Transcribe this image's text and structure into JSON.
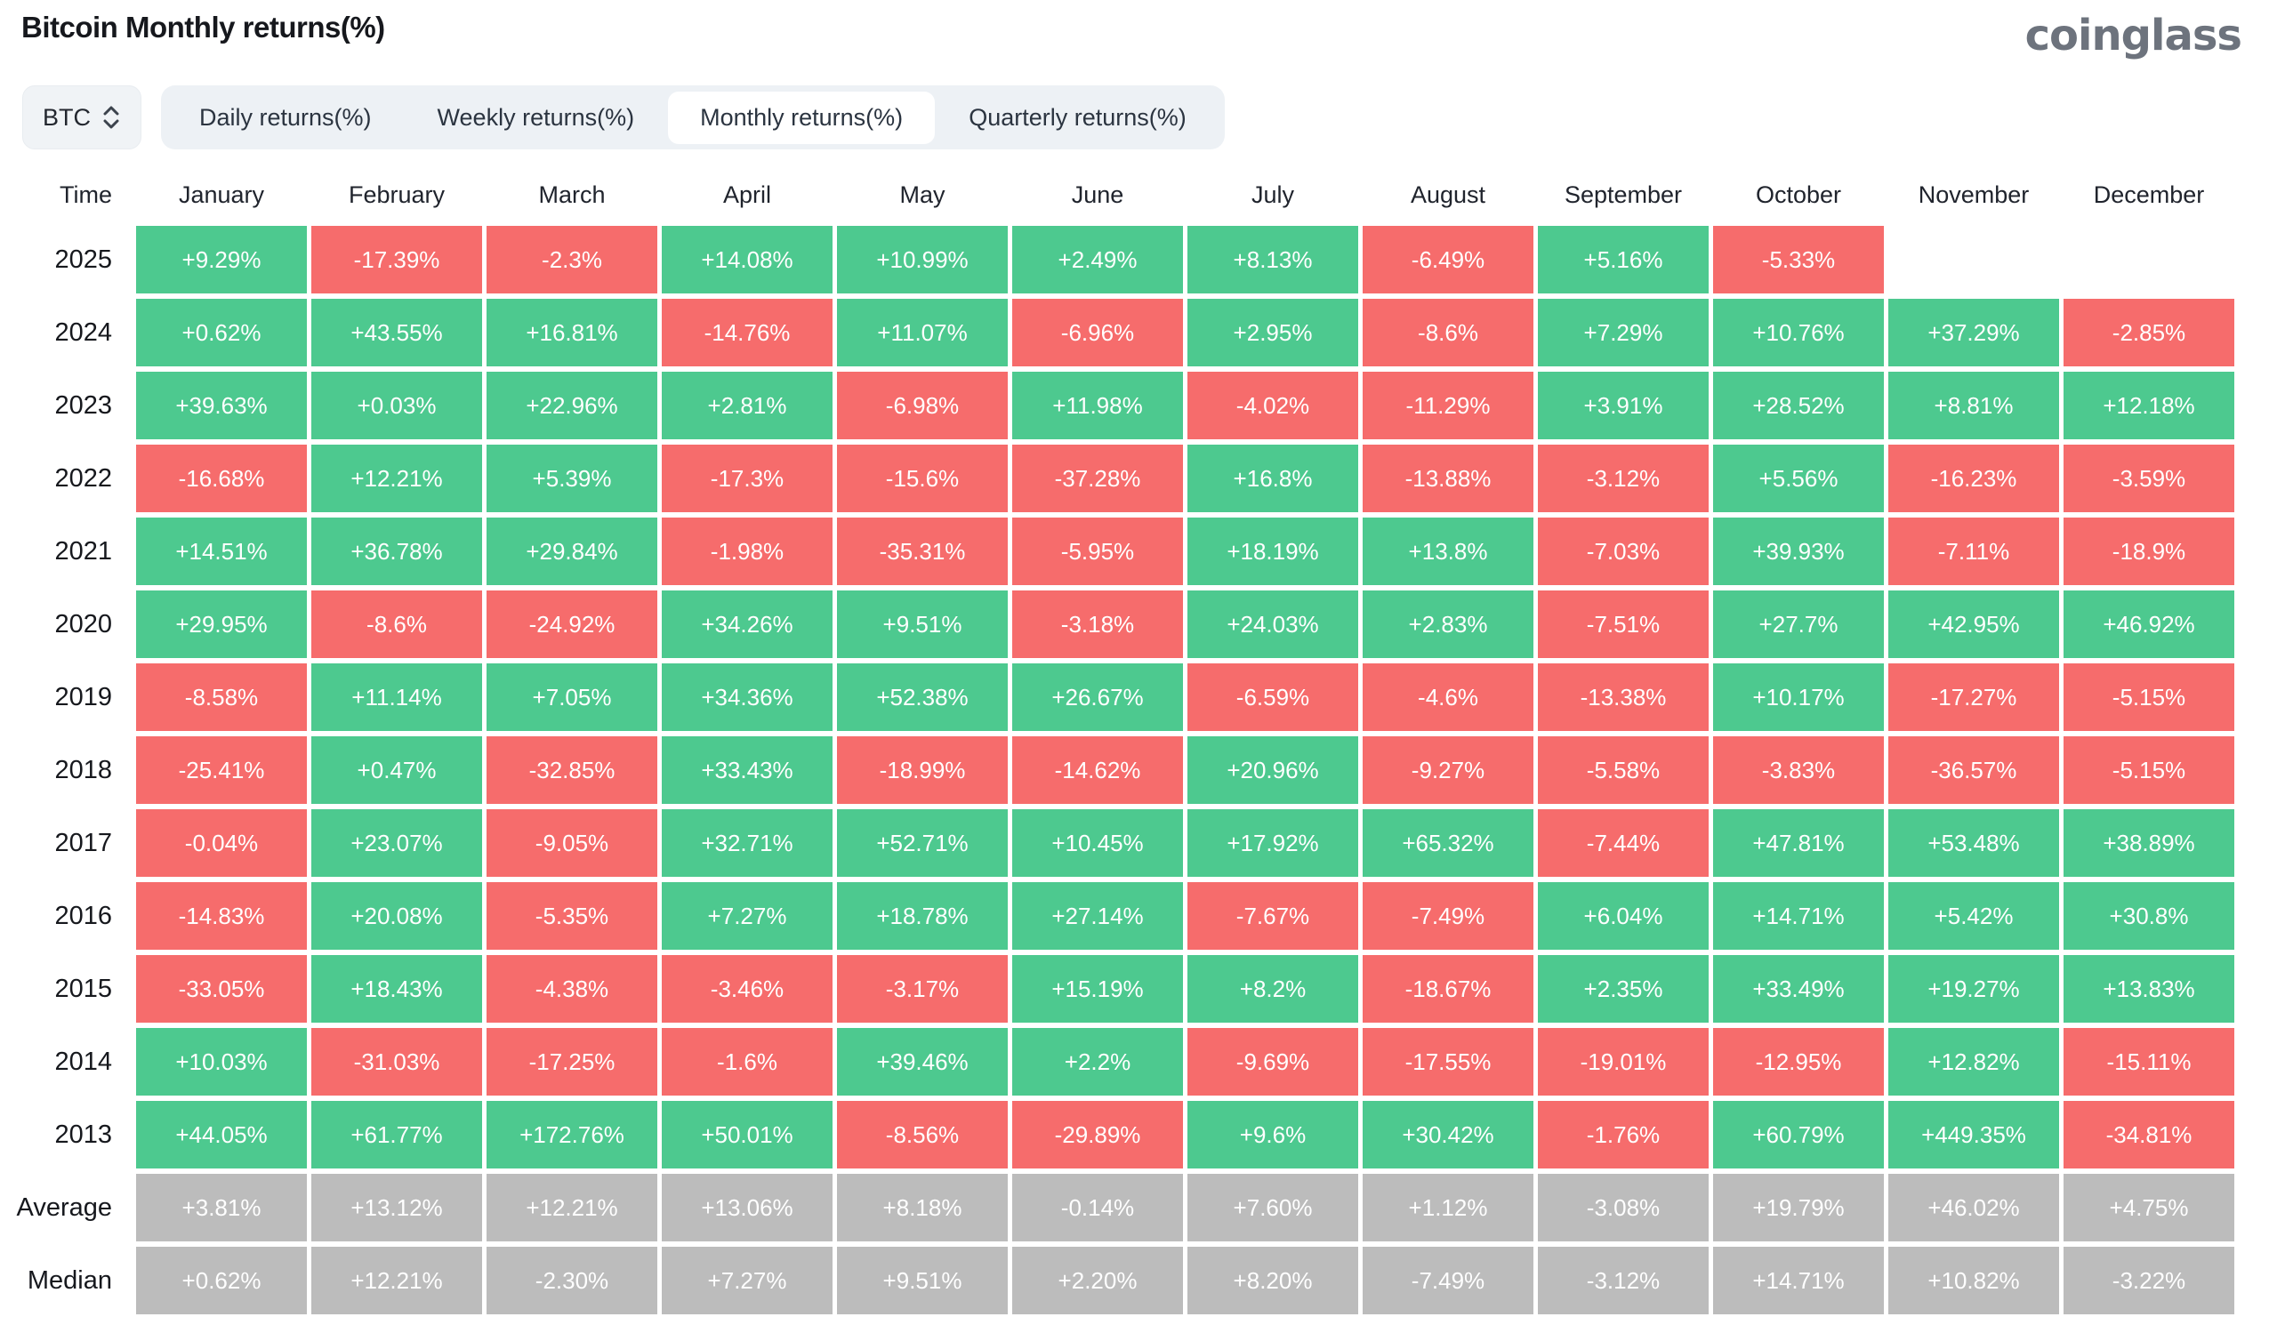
{
  "header": {
    "title": "Bitcoin Monthly returns(%)",
    "logo": "coinglass"
  },
  "controls": {
    "symbol": "BTC",
    "tabs": [
      {
        "label": "Daily returns(%)",
        "active": false
      },
      {
        "label": "Weekly returns(%)",
        "active": false
      },
      {
        "label": "Monthly returns(%)",
        "active": true
      },
      {
        "label": "Quarterly returns(%)",
        "active": false
      }
    ]
  },
  "chart_data": {
    "type": "heatmap",
    "title": "Bitcoin Monthly returns(%)",
    "unit": "percent",
    "columns": [
      "Time",
      "January",
      "February",
      "March",
      "April",
      "May",
      "June",
      "July",
      "August",
      "September",
      "October",
      "November",
      "December"
    ],
    "rows": [
      {
        "label": "2025",
        "type": "year",
        "values": [
          "+9.29%",
          "-17.39%",
          "-2.3%",
          "+14.08%",
          "+10.99%",
          "+2.49%",
          "+8.13%",
          "-6.49%",
          "+5.16%",
          "-5.33%",
          "",
          ""
        ]
      },
      {
        "label": "2024",
        "type": "year",
        "values": [
          "+0.62%",
          "+43.55%",
          "+16.81%",
          "-14.76%",
          "+11.07%",
          "-6.96%",
          "+2.95%",
          "-8.6%",
          "+7.29%",
          "+10.76%",
          "+37.29%",
          "-2.85%"
        ]
      },
      {
        "label": "2023",
        "type": "year",
        "values": [
          "+39.63%",
          "+0.03%",
          "+22.96%",
          "+2.81%",
          "-6.98%",
          "+11.98%",
          "-4.02%",
          "-11.29%",
          "+3.91%",
          "+28.52%",
          "+8.81%",
          "+12.18%"
        ]
      },
      {
        "label": "2022",
        "type": "year",
        "values": [
          "-16.68%",
          "+12.21%",
          "+5.39%",
          "-17.3%",
          "-15.6%",
          "-37.28%",
          "+16.8%",
          "-13.88%",
          "-3.12%",
          "+5.56%",
          "-16.23%",
          "-3.59%"
        ]
      },
      {
        "label": "2021",
        "type": "year",
        "values": [
          "+14.51%",
          "+36.78%",
          "+29.84%",
          "-1.98%",
          "-35.31%",
          "-5.95%",
          "+18.19%",
          "+13.8%",
          "-7.03%",
          "+39.93%",
          "-7.11%",
          "-18.9%"
        ]
      },
      {
        "label": "2020",
        "type": "year",
        "values": [
          "+29.95%",
          "-8.6%",
          "-24.92%",
          "+34.26%",
          "+9.51%",
          "-3.18%",
          "+24.03%",
          "+2.83%",
          "-7.51%",
          "+27.7%",
          "+42.95%",
          "+46.92%"
        ]
      },
      {
        "label": "2019",
        "type": "year",
        "values": [
          "-8.58%",
          "+11.14%",
          "+7.05%",
          "+34.36%",
          "+52.38%",
          "+26.67%",
          "-6.59%",
          "-4.6%",
          "-13.38%",
          "+10.17%",
          "-17.27%",
          "-5.15%"
        ]
      },
      {
        "label": "2018",
        "type": "year",
        "values": [
          "-25.41%",
          "+0.47%",
          "-32.85%",
          "+33.43%",
          "-18.99%",
          "-14.62%",
          "+20.96%",
          "-9.27%",
          "-5.58%",
          "-3.83%",
          "-36.57%",
          "-5.15%"
        ]
      },
      {
        "label": "2017",
        "type": "year",
        "values": [
          "-0.04%",
          "+23.07%",
          "-9.05%",
          "+32.71%",
          "+52.71%",
          "+10.45%",
          "+17.92%",
          "+65.32%",
          "-7.44%",
          "+47.81%",
          "+53.48%",
          "+38.89%"
        ]
      },
      {
        "label": "2016",
        "type": "year",
        "values": [
          "-14.83%",
          "+20.08%",
          "-5.35%",
          "+7.27%",
          "+18.78%",
          "+27.14%",
          "-7.67%",
          "-7.49%",
          "+6.04%",
          "+14.71%",
          "+5.42%",
          "+30.8%"
        ]
      },
      {
        "label": "2015",
        "type": "year",
        "values": [
          "-33.05%",
          "+18.43%",
          "-4.38%",
          "-3.46%",
          "-3.17%",
          "+15.19%",
          "+8.2%",
          "-18.67%",
          "+2.35%",
          "+33.49%",
          "+19.27%",
          "+13.83%"
        ]
      },
      {
        "label": "2014",
        "type": "year",
        "values": [
          "+10.03%",
          "-31.03%",
          "-17.25%",
          "-1.6%",
          "+39.46%",
          "+2.2%",
          "-9.69%",
          "-17.55%",
          "-19.01%",
          "-12.95%",
          "+12.82%",
          "-15.11%"
        ]
      },
      {
        "label": "2013",
        "type": "year",
        "values": [
          "+44.05%",
          "+61.77%",
          "+172.76%",
          "+50.01%",
          "-8.56%",
          "-29.89%",
          "+9.6%",
          "+30.42%",
          "-1.76%",
          "+60.79%",
          "+449.35%",
          "-34.81%"
        ]
      },
      {
        "label": "Average",
        "type": "summary",
        "values": [
          "+3.81%",
          "+13.12%",
          "+12.21%",
          "+13.06%",
          "+8.18%",
          "-0.14%",
          "+7.60%",
          "+1.12%",
          "-3.08%",
          "+19.79%",
          "+46.02%",
          "+4.75%"
        ]
      },
      {
        "label": "Median",
        "type": "summary",
        "values": [
          "+0.62%",
          "+12.21%",
          "-2.30%",
          "+7.27%",
          "+9.51%",
          "+2.20%",
          "+8.20%",
          "-7.49%",
          "-3.12%",
          "+14.71%",
          "+10.82%",
          "-3.22%"
        ]
      }
    ],
    "colors": {
      "positive": "#4dc98f",
      "negative": "#f66c6c",
      "summary": "#bcbcbc",
      "cell_text": "#ffffff"
    },
    "legend_position": "none",
    "grid": false
  }
}
